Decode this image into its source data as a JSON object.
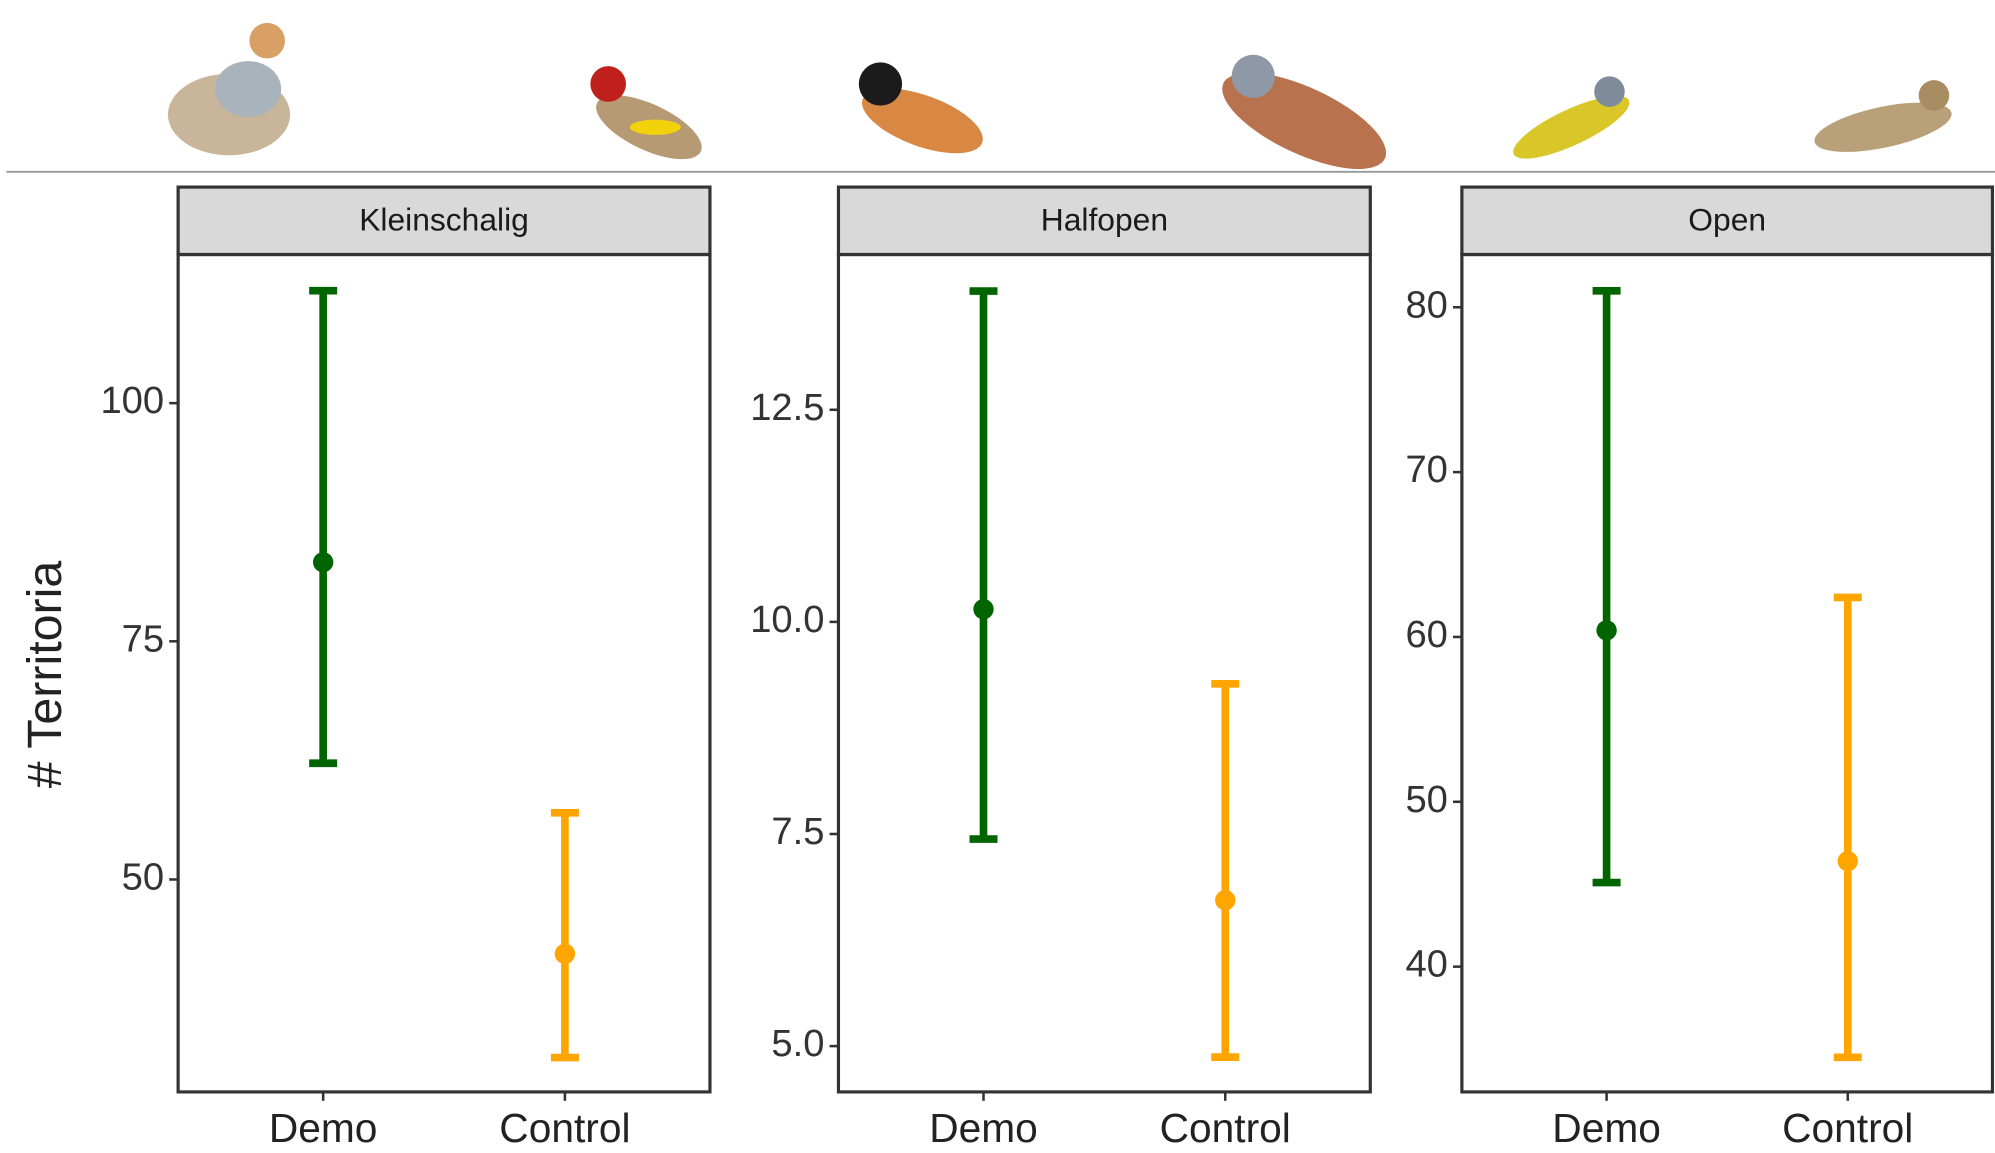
{
  "y_label": "# Territoria",
  "chart_data": [
    {
      "type": "errorbar",
      "title": "Kleinschalig",
      "categories": [
        "Demo",
        "Control"
      ],
      "values": [
        83.3,
        42.2
      ],
      "lower": [
        62.2,
        31.3
      ],
      "upper": [
        111.8,
        57.0
      ],
      "colors": [
        "#006400",
        "#FFA500"
      ],
      "ylim": [
        27.7,
        115.6
      ],
      "yticks": [
        50,
        75,
        100
      ]
    },
    {
      "type": "errorbar",
      "title": "Halfopen",
      "categories": [
        "Demo",
        "Control"
      ],
      "values": [
        10.15,
        6.72
      ],
      "lower": [
        7.44,
        4.87
      ],
      "upper": [
        13.9,
        9.27
      ],
      "colors": [
        "#006400",
        "#FFA500"
      ],
      "ylim": [
        4.46,
        14.33
      ],
      "yticks": [
        {
          "value": 5,
          "label": "5.0"
        },
        7.5,
        {
          "value": 10,
          "label": "10.0"
        },
        12.5
      ]
    },
    {
      "type": "errorbar",
      "title": "Open",
      "categories": [
        "Demo",
        "Control"
      ],
      "values": [
        60.4,
        46.4
      ],
      "lower": [
        45.1,
        34.5
      ],
      "upper": [
        81.0,
        62.4
      ],
      "colors": [
        "#006400",
        "#FFA500"
      ],
      "ylim": [
        32.4,
        83.2
      ],
      "yticks": [
        40,
        50,
        60,
        70,
        80
      ]
    }
  ]
}
